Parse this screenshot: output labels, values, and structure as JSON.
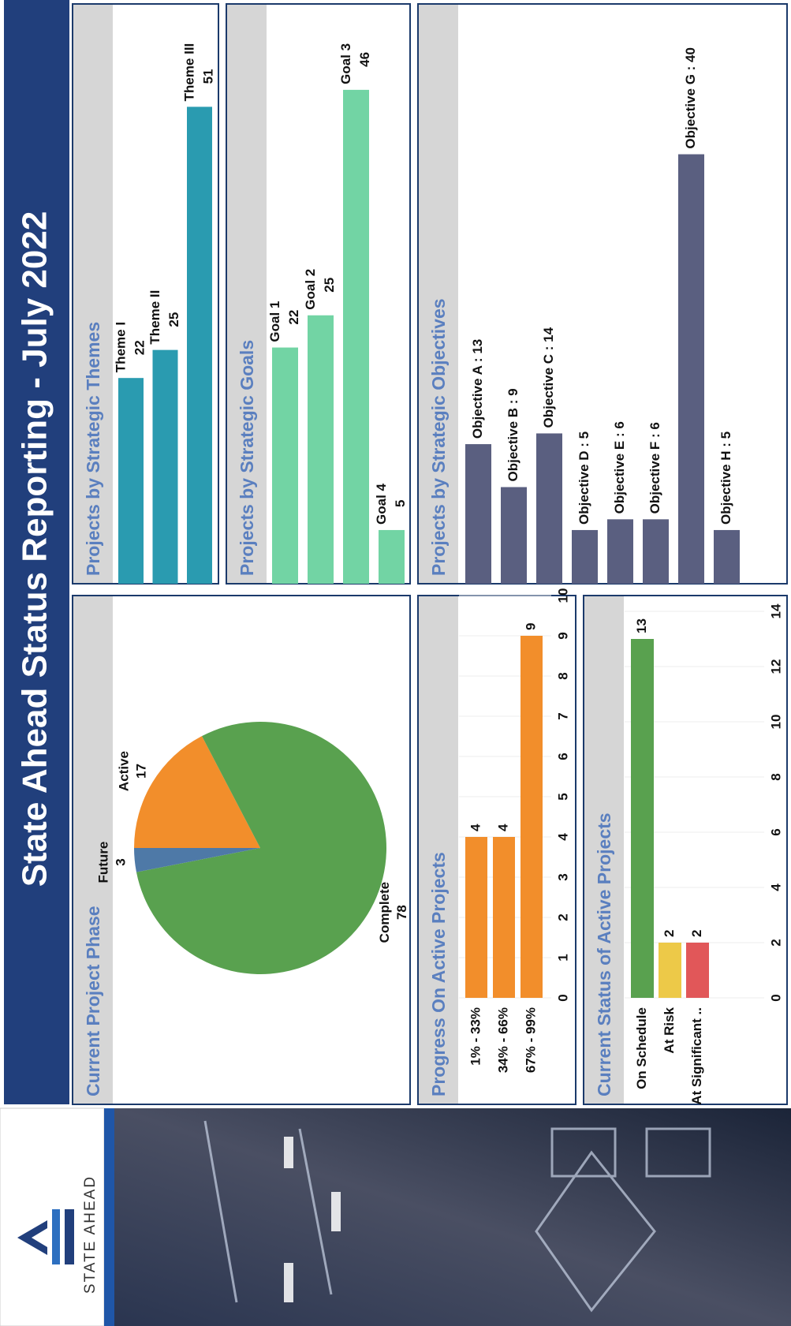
{
  "header": {
    "title": "State Ahead Status Reporting - July 2022",
    "logo_text": "STATE AHEAD"
  },
  "chart_data": [
    {
      "type": "pie",
      "title": "Current Project Phase",
      "categories": [
        "Active",
        "Complete",
        "Future"
      ],
      "values": [
        17,
        78,
        3
      ],
      "colors": [
        "#f28e2b",
        "#59a14f",
        "#4e79a7"
      ]
    },
    {
      "type": "hbar",
      "title": "Projects by Strategic Themes",
      "categories": [
        "Theme I",
        "Theme II",
        "Theme III"
      ],
      "values": [
        22,
        25,
        51
      ],
      "color": "#2a9bb0",
      "xlim": [
        0,
        62
      ]
    },
    {
      "type": "hbar",
      "title": "Projects by Strategic Goals",
      "categories": [
        "Goal 1",
        "Goal 2",
        "Goal 3",
        "Goal 4"
      ],
      "values": [
        22,
        25,
        46,
        5
      ],
      "color": "#72d4a4",
      "xlim": [
        0,
        54
      ]
    },
    {
      "type": "hbar",
      "title": "Projects by Strategic Objectives",
      "values": [
        13,
        9,
        14,
        5,
        6,
        6,
        40,
        5
      ],
      "value_labels": [
        "Objective A : 13",
        "Objective B : 9",
        "Objective C : 14",
        "Objective D : 5",
        "Objective E : 6",
        "Objective F : 6",
        "Objective G : 40",
        "Objective H : 5"
      ],
      "color": "#5a5f80",
      "xlim": [
        0,
        54
      ]
    },
    {
      "type": "hbar",
      "title": "Progress On Active Projects",
      "categories": [
        "1% - 33%",
        "34% - 66%",
        "67% - 99%"
      ],
      "values": [
        4,
        4,
        9
      ],
      "color": "#f28e2b",
      "xlim": [
        0,
        10
      ],
      "xticks": [
        0,
        1,
        2,
        3,
        4,
        5,
        6,
        7,
        8,
        9,
        10
      ],
      "grid": true
    },
    {
      "type": "hbar",
      "title": "Current Status of Active Projects",
      "categories": [
        "On Schedule",
        "At Risk",
        "At Significant .."
      ],
      "values": [
        13,
        2,
        2
      ],
      "colors": [
        "#59a14f",
        "#edc948",
        "#e15759"
      ],
      "xlim": [
        0,
        14
      ],
      "xticks": [
        0,
        2,
        4,
        6,
        8,
        10,
        12,
        14
      ],
      "grid": true
    }
  ]
}
